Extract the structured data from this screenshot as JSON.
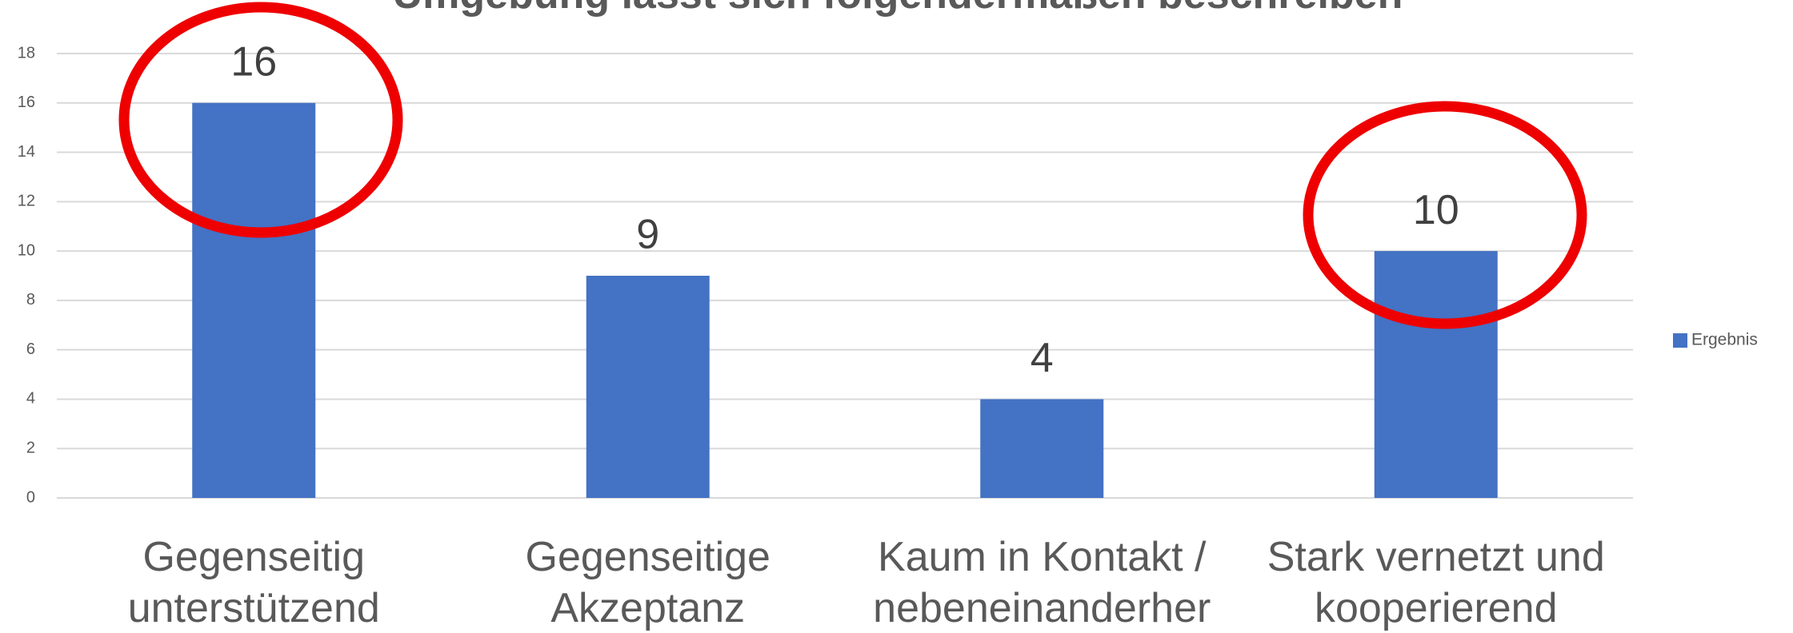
{
  "chart_data": {
    "type": "bar",
    "title": "Umgebung lässt sich folgendermaßen beschreiben",
    "categories": [
      "Gegenseitig\nunterstützend",
      "Gegenseitige\nAkzeptanz",
      "Kaum in Kontakt /\nnebeneinanderher",
      "Stark vernetzt und\nkooperierend"
    ],
    "series": [
      {
        "name": "Ergebnis",
        "color": "#4472c4",
        "values": [
          16,
          9,
          4,
          10
        ]
      }
    ],
    "ylim": [
      0,
      18
    ],
    "yticks": [
      0,
      2,
      4,
      6,
      8,
      10,
      12,
      14,
      16,
      18
    ],
    "grid": true,
    "legend": "right"
  }
}
